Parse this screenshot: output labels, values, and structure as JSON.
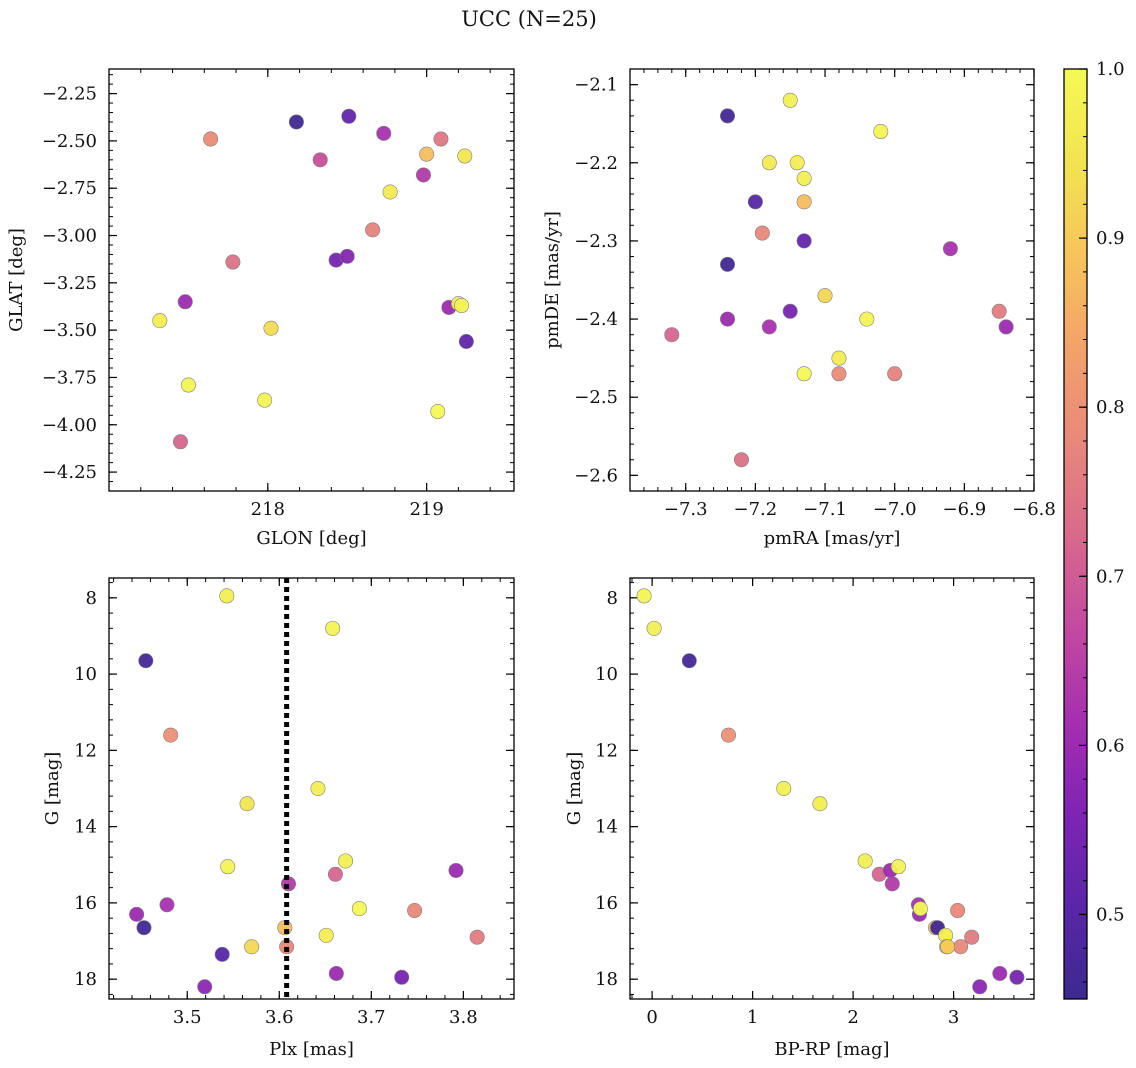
{
  "figure": {
    "title": "UCC (N=25)"
  },
  "colorbar": {
    "min": 0.45,
    "max": 1.0,
    "ticks": [
      0.5,
      0.6,
      0.7,
      0.8,
      0.9,
      1.0
    ],
    "tick_labels": [
      "0.5",
      "0.6",
      "0.7",
      "0.8",
      "0.9",
      "1.0"
    ],
    "colormap": "plasma",
    "stops": [
      "#3b2a8f",
      "#5a26a8",
      "#7f24b4",
      "#a62fb0",
      "#c34aa0",
      "#d86a8c",
      "#e8887b",
      "#f3a26a",
      "#f7c45b",
      "#f2e450",
      "#f4f955"
    ]
  },
  "chart_data": [
    {
      "type": "scatter",
      "xlabel": "GLON [deg]",
      "ylabel": "GLAT [deg]",
      "xlim": [
        217.0,
        219.55
      ],
      "ylim": [
        -4.35,
        -2.12
      ],
      "xticks": [
        218,
        219
      ],
      "xtick_labels": [
        "218",
        "219"
      ],
      "yticks": [
        -4.25,
        -4.0,
        -3.75,
        -3.5,
        -3.25,
        -3.0,
        -2.75,
        -2.5,
        -2.25
      ],
      "ytick_labels": [
        "−4.25",
        "−4.00",
        "−3.75",
        "−3.50",
        "−3.25",
        "−3.00",
        "−2.75",
        "−2.50",
        "−2.25"
      ],
      "x": [
        218.18,
        218.51,
        218.33,
        218.43,
        218.5,
        218.73,
        218.98,
        219.25,
        219.14,
        217.48,
        217.64,
        219.09,
        218.66,
        217.78,
        217.45,
        219.0,
        218.77,
        219.2,
        219.22,
        219.24,
        217.32,
        218.02,
        217.5,
        217.98,
        219.07
      ],
      "y": [
        -2.4,
        -2.37,
        -2.6,
        -3.13,
        -3.11,
        -2.46,
        -2.68,
        -3.56,
        -3.38,
        -3.35,
        -2.49,
        -2.49,
        -2.97,
        -3.14,
        -4.09,
        -2.57,
        -2.77,
        -3.36,
        -3.37,
        -2.58,
        -3.45,
        -3.49,
        -3.79,
        -3.87,
        -3.93
      ],
      "color": [
        0.46,
        0.52,
        0.68,
        0.55,
        0.57,
        0.62,
        0.64,
        0.52,
        0.6,
        0.6,
        0.79,
        0.75,
        0.77,
        0.74,
        0.72,
        0.88,
        0.96,
        0.98,
        0.99,
        0.95,
        0.97,
        0.93,
        0.99,
        0.99,
        1.0
      ]
    },
    {
      "type": "scatter",
      "xlabel": "pmRA [mas/yr]",
      "ylabel": "pmDE [mas/yr]",
      "xlim": [
        -7.38,
        -6.8
      ],
      "ylim": [
        -2.62,
        -2.08
      ],
      "xticks": [
        -7.3,
        -7.2,
        -7.1,
        -7.0,
        -6.9,
        -6.8
      ],
      "xtick_labels": [
        "−7.3",
        "−7.2",
        "−7.1",
        "−7.0",
        "−6.9",
        "−6.8"
      ],
      "yticks": [
        -2.6,
        -2.5,
        -2.4,
        -2.3,
        -2.2,
        -2.1
      ],
      "ytick_labels": [
        "−2.6",
        "−2.5",
        "−2.4",
        "−2.3",
        "−2.2",
        "−2.1"
      ],
      "x": [
        -7.24,
        -7.2,
        -7.24,
        -7.13,
        -7.24,
        -7.15,
        -7.18,
        -6.92,
        -6.84,
        -7.32,
        -7.19,
        -6.85,
        -7.08,
        -7.0,
        -7.22,
        -7.13,
        -7.1,
        -7.18,
        -7.14,
        -7.13,
        -7.04,
        -7.08,
        -7.15,
        -7.02,
        -7.13
      ],
      "y": [
        -2.14,
        -2.25,
        -2.33,
        -2.3,
        -2.4,
        -2.39,
        -2.41,
        -2.31,
        -2.41,
        -2.42,
        -2.29,
        -2.39,
        -2.47,
        -2.47,
        -2.58,
        -2.25,
        -2.37,
        -2.2,
        -2.2,
        -2.22,
        -2.4,
        -2.45,
        -2.12,
        -2.16,
        -2.47
      ],
      "color": [
        0.47,
        0.5,
        0.46,
        0.52,
        0.6,
        0.55,
        0.62,
        0.62,
        0.6,
        0.72,
        0.78,
        0.76,
        0.79,
        0.77,
        0.74,
        0.88,
        0.92,
        0.96,
        0.97,
        0.98,
        0.99,
        0.97,
        0.98,
        0.99,
        1.0
      ]
    },
    {
      "type": "scatter",
      "xlabel": "Plx [mas]",
      "ylabel": "G [mag]",
      "xlim": [
        3.415,
        3.855
      ],
      "ylim": [
        18.52,
        7.48
      ],
      "y_inverted": true,
      "xticks": [
        3.5,
        3.6,
        3.7,
        3.8
      ],
      "xtick_labels": [
        "3.5",
        "3.6",
        "3.7",
        "3.8"
      ],
      "yticks": [
        8,
        10,
        12,
        14,
        16,
        18
      ],
      "ytick_labels": [
        "8",
        "10",
        "12",
        "14",
        "16",
        "18"
      ],
      "vline": {
        "x": 3.608,
        "style": "dotted"
      },
      "x": [
        3.455,
        3.453,
        3.538,
        3.445,
        3.478,
        3.61,
        3.662,
        3.519,
        3.733,
        3.792,
        3.482,
        3.608,
        3.661,
        3.747,
        3.815,
        3.606,
        3.543,
        3.658,
        3.565,
        3.642,
        3.544,
        3.672,
        3.57,
        3.651,
        3.687
      ],
      "y": [
        9.65,
        16.65,
        17.35,
        16.3,
        16.05,
        15.5,
        17.85,
        18.2,
        17.95,
        15.15,
        11.6,
        17.15,
        15.25,
        16.2,
        16.9,
        16.65,
        7.95,
        8.8,
        13.4,
        13.0,
        15.05,
        14.9,
        17.15,
        16.85,
        16.15
      ],
      "color": [
        0.47,
        0.46,
        0.5,
        0.6,
        0.62,
        0.64,
        0.6,
        0.58,
        0.55,
        0.6,
        0.8,
        0.78,
        0.72,
        0.78,
        0.76,
        0.88,
        0.98,
        0.99,
        0.95,
        0.98,
        0.99,
        0.98,
        0.93,
        0.97,
        1.0
      ]
    },
    {
      "type": "scatter",
      "xlabel": "BP-RP [mag]",
      "ylabel": "G [mag]",
      "xlim": [
        -0.22,
        3.8
      ],
      "ylim": [
        18.52,
        7.48
      ],
      "y_inverted": true,
      "xticks": [
        0,
        1,
        2,
        3
      ],
      "xtick_labels": [
        "0",
        "1",
        "2",
        "3"
      ],
      "yticks": [
        8,
        10,
        12,
        14,
        16,
        18
      ],
      "ytick_labels": [
        "8",
        "10",
        "12",
        "14",
        "16",
        "18"
      ],
      "x": [
        -0.08,
        0.02,
        0.37,
        0.76,
        1.31,
        1.67,
        2.12,
        2.26,
        2.37,
        2.39,
        2.45,
        2.65,
        2.66,
        2.67,
        2.82,
        2.84,
        2.92,
        2.93,
        3.04,
        3.07,
        3.18,
        3.26,
        3.46,
        3.63,
        2.94
      ],
      "y": [
        7.95,
        8.8,
        9.65,
        11.6,
        13.0,
        13.4,
        14.9,
        15.25,
        15.15,
        15.5,
        15.05,
        16.05,
        16.3,
        16.15,
        16.65,
        16.65,
        16.85,
        17.15,
        16.2,
        17.15,
        16.9,
        18.2,
        17.85,
        17.95,
        17.15
      ],
      "color": [
        0.99,
        0.98,
        0.47,
        0.8,
        0.98,
        0.97,
        0.98,
        0.72,
        0.6,
        0.64,
        0.99,
        0.62,
        0.6,
        1.0,
        0.88,
        0.46,
        0.97,
        0.93,
        0.78,
        0.78,
        0.76,
        0.58,
        0.6,
        0.55,
        0.9
      ]
    }
  ]
}
